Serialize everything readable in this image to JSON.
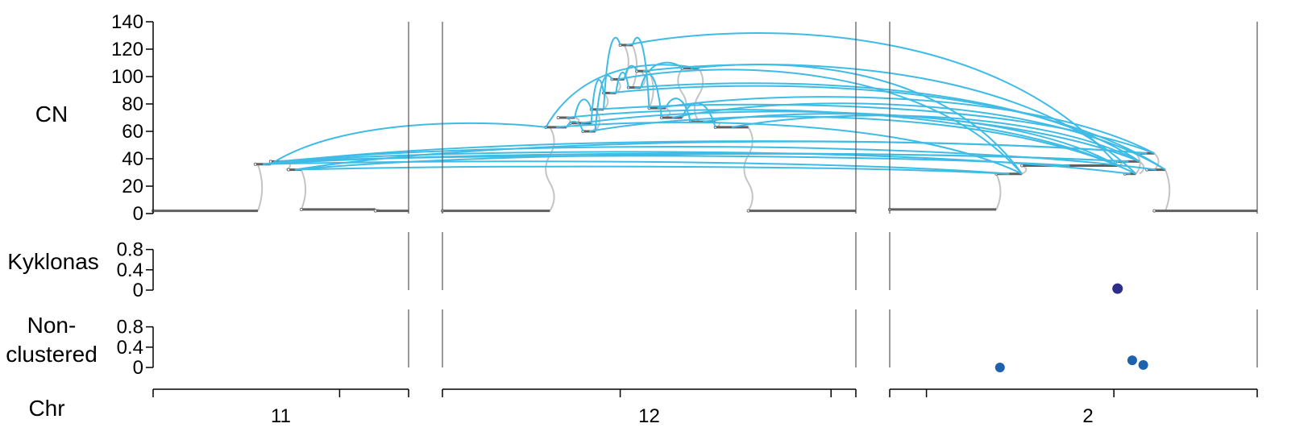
{
  "chart_data": {
    "type": "scatter",
    "panels": [
      {
        "id": "cn",
        "label": "CN",
        "ylim": [
          0,
          140
        ],
        "yticks": [
          "0",
          "20",
          "40",
          "60",
          "80",
          "100",
          "120",
          "140"
        ]
      },
      {
        "id": "kyklonas",
        "label": "Kyklonas",
        "ylim": [
          0,
          1
        ],
        "yticks": [
          "0",
          "0.4",
          "0.8"
        ]
      },
      {
        "id": "nonclustered",
        "label_lines": [
          "Non-",
          "clustered"
        ],
        "ylim": [
          0,
          1
        ],
        "yticks": [
          "0",
          "0.4",
          "0.8"
        ]
      }
    ],
    "chromosome_track": {
      "label": "Chr",
      "chromosomes": [
        "11",
        "12",
        "2"
      ]
    },
    "cn_segments": [
      {
        "chr": "11",
        "start": 0.0,
        "end": 0.41,
        "cn": 2
      },
      {
        "chr": "11",
        "start": 0.4,
        "end": 0.46,
        "cn": 36
      },
      {
        "chr": "11",
        "start": 0.46,
        "end": 0.52,
        "cn": 38
      },
      {
        "chr": "11",
        "start": 0.53,
        "end": 0.58,
        "cn": 32
      },
      {
        "chr": "11",
        "start": 0.58,
        "end": 0.87,
        "cn": 3
      },
      {
        "chr": "11",
        "start": 0.87,
        "end": 1.0,
        "cn": 2
      },
      {
        "chr": "12",
        "start": 0.0,
        "end": 0.26,
        "cn": 2
      },
      {
        "chr": "12",
        "start": 0.25,
        "end": 0.3,
        "cn": 63
      },
      {
        "chr": "12",
        "start": 0.28,
        "end": 0.32,
        "cn": 70
      },
      {
        "chr": "12",
        "start": 0.31,
        "end": 0.36,
        "cn": 66
      },
      {
        "chr": "12",
        "start": 0.34,
        "end": 0.37,
        "cn": 60
      },
      {
        "chr": "12",
        "start": 0.36,
        "end": 0.39,
        "cn": 76
      },
      {
        "chr": "12",
        "start": 0.39,
        "end": 0.42,
        "cn": 88
      },
      {
        "chr": "12",
        "start": 0.41,
        "end": 0.44,
        "cn": 98
      },
      {
        "chr": "12",
        "start": 0.43,
        "end": 0.46,
        "cn": 123
      },
      {
        "chr": "12",
        "start": 0.45,
        "end": 0.48,
        "cn": 92
      },
      {
        "chr": "12",
        "start": 0.47,
        "end": 0.5,
        "cn": 104
      },
      {
        "chr": "12",
        "start": 0.5,
        "end": 0.54,
        "cn": 77
      },
      {
        "chr": "12",
        "start": 0.53,
        "end": 0.58,
        "cn": 70
      },
      {
        "chr": "12",
        "start": 0.58,
        "end": 0.62,
        "cn": 106
      },
      {
        "chr": "12",
        "start": 0.6,
        "end": 0.66,
        "cn": 67
      },
      {
        "chr": "12",
        "start": 0.66,
        "end": 0.74,
        "cn": 63
      },
      {
        "chr": "12",
        "start": 0.74,
        "end": 1.0,
        "cn": 2
      },
      {
        "chr": "2",
        "start": 0.0,
        "end": 0.29,
        "cn": 3
      },
      {
        "chr": "2",
        "start": 0.29,
        "end": 0.36,
        "cn": 29
      },
      {
        "chr": "2",
        "start": 0.36,
        "end": 0.62,
        "cn": 35
      },
      {
        "chr": "2",
        "start": 0.62,
        "end": 0.68,
        "cn": 38
      },
      {
        "chr": "2",
        "start": 0.64,
        "end": 0.67,
        "cn": 29
      },
      {
        "chr": "2",
        "start": 0.68,
        "end": 0.72,
        "cn": 44
      },
      {
        "chr": "2",
        "start": 0.7,
        "end": 0.75,
        "cn": 32
      },
      {
        "chr": "2",
        "start": 0.72,
        "end": 1.0,
        "cn": 2
      }
    ],
    "kyklonas_points": [
      {
        "chr": "2",
        "pos": 0.62,
        "value": 0.03
      }
    ],
    "nonclustered_points": [
      {
        "chr": "2",
        "pos": 0.3,
        "value": 0.0
      },
      {
        "chr": "2",
        "pos": 0.66,
        "value": 0.14
      },
      {
        "chr": "2",
        "pos": 0.69,
        "value": 0.05
      }
    ],
    "colors": {
      "sv_arc": "#3ebce6",
      "cn_segment": "#5f5f5f",
      "cn_connector": "#c4c4c4",
      "kyklonas_point": "#2e2e8a",
      "nonclustered_point": "#1c62ae",
      "axis": "#000000",
      "chr_boundary": "#555555"
    }
  }
}
